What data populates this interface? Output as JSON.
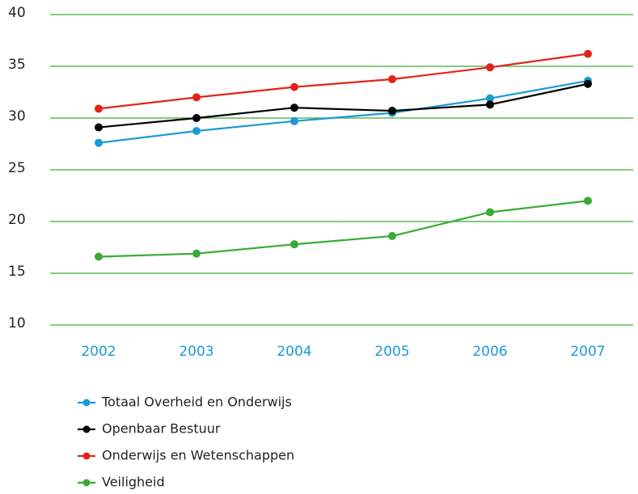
{
  "chart_data": {
    "type": "line",
    "categories": [
      "2002",
      "2003",
      "2004",
      "2005",
      "2006",
      "2007"
    ],
    "series": [
      {
        "name": "Totaal Overheid en Onderwijs",
        "color": "#1a9bd7",
        "values": [
          27.6,
          28.75,
          29.7,
          30.5,
          31.9,
          33.6
        ]
      },
      {
        "name": "Openbaar Bestuur",
        "color": "#000000",
        "values": [
          29.1,
          30,
          31,
          30.7,
          31.3,
          33.3
        ]
      },
      {
        "name": "Onderwijs en Wetenschappen",
        "color": "#e2231a",
        "values": [
          30.9,
          32,
          33,
          33.75,
          34.9,
          36.2
        ]
      },
      {
        "name": "Veiligheid",
        "color": "#3aaa35",
        "values": [
          16.6,
          16.9,
          17.8,
          18.6,
          20.9,
          22
        ]
      }
    ],
    "ylim": [
      10,
      40
    ],
    "yticks": [
      10,
      15,
      20,
      25,
      30,
      35,
      40
    ],
    "grid": true,
    "grid_color": "#3aaa35",
    "category_color": "#1a9bd7"
  }
}
